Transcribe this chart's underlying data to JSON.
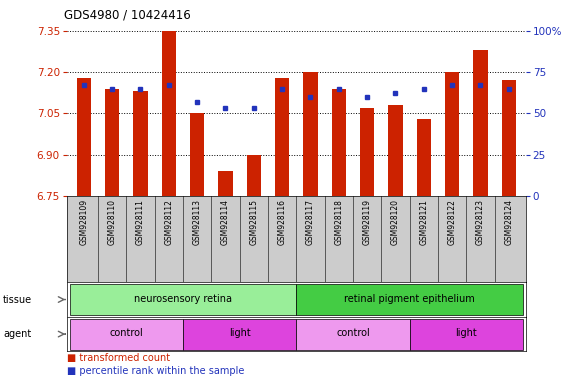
{
  "title": "GDS4980 / 10424416",
  "samples": [
    "GSM928109",
    "GSM928110",
    "GSM928111",
    "GSM928112",
    "GSM928113",
    "GSM928114",
    "GSM928115",
    "GSM928116",
    "GSM928117",
    "GSM928118",
    "GSM928119",
    "GSM928120",
    "GSM928121",
    "GSM928122",
    "GSM928123",
    "GSM928124"
  ],
  "bar_values": [
    7.18,
    7.14,
    7.13,
    7.35,
    7.05,
    6.84,
    6.9,
    7.18,
    7.2,
    7.14,
    7.07,
    7.08,
    7.03,
    7.2,
    7.28,
    7.17
  ],
  "percentile_values": [
    67,
    65,
    65,
    67,
    57,
    53,
    53,
    65,
    60,
    65,
    60,
    62,
    65,
    67,
    67,
    65
  ],
  "ylim_left": [
    6.75,
    7.35
  ],
  "ylim_right": [
    0,
    100
  ],
  "y_ticks_left": [
    6.75,
    6.9,
    7.05,
    7.2,
    7.35
  ],
  "y_ticks_right": [
    0,
    25,
    50,
    75,
    100
  ],
  "bar_color": "#cc2200",
  "percentile_color": "#2233bb",
  "bar_bottom": 6.75,
  "tissue_groups": [
    {
      "label": "neurosensory retina",
      "start": 0,
      "end": 8,
      "color": "#99ee99"
    },
    {
      "label": "retinal pigment epithelium",
      "start": 8,
      "end": 16,
      "color": "#44cc44"
    }
  ],
  "agent_groups": [
    {
      "label": "control",
      "start": 0,
      "end": 4,
      "color": "#ee99ee"
    },
    {
      "label": "light",
      "start": 4,
      "end": 8,
      "color": "#dd44dd"
    },
    {
      "label": "control",
      "start": 8,
      "end": 12,
      "color": "#ee99ee"
    },
    {
      "label": "light",
      "start": 12,
      "end": 16,
      "color": "#dd44dd"
    }
  ],
  "sample_label_bg": "#cccccc",
  "tick_color_left": "#cc2200",
  "tick_color_right": "#2233bb",
  "legend": [
    {
      "label": "transformed count",
      "color": "#cc2200"
    },
    {
      "label": "percentile rank within the sample",
      "color": "#2233bb"
    }
  ]
}
